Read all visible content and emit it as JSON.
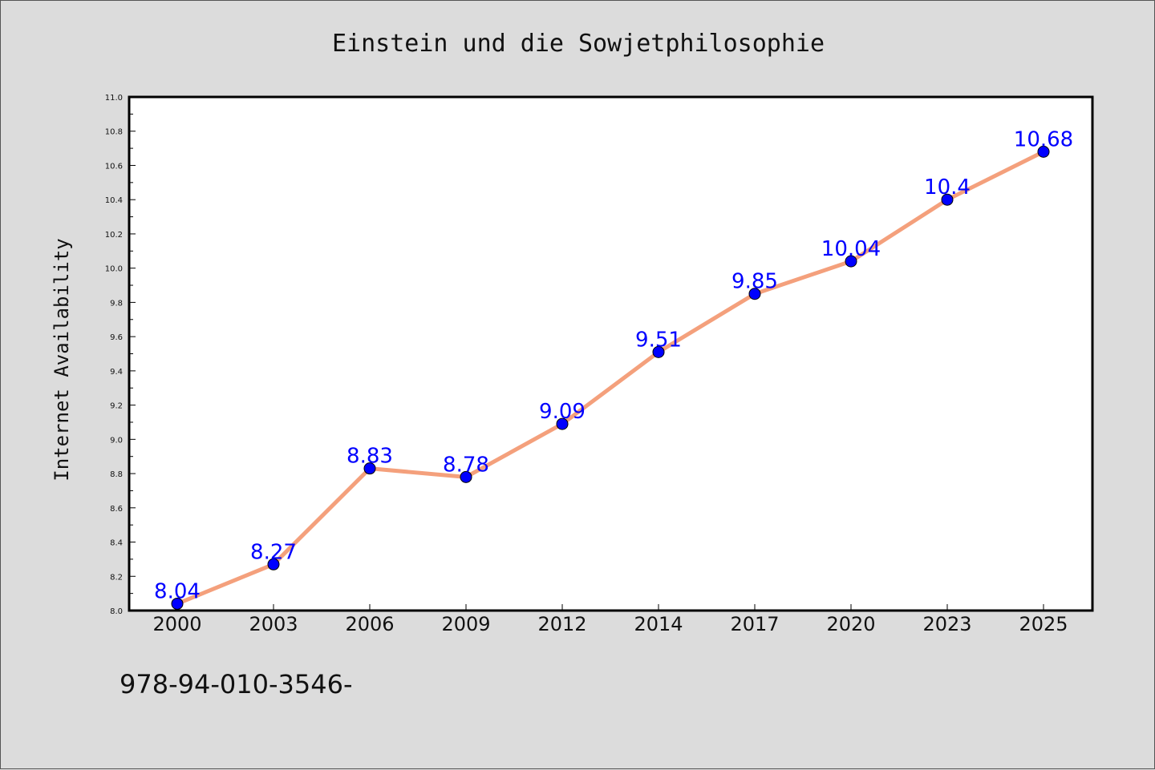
{
  "chart_data": {
    "type": "line",
    "title": "Einstein und die Sowjetphilosophie",
    "xlabel": "",
    "ylabel": "Internet Availability",
    "categories": [
      "2000",
      "2003",
      "2006",
      "2009",
      "2012",
      "2014",
      "2017",
      "2020",
      "2023",
      "2025"
    ],
    "series": [
      {
        "values": [
          8.04,
          8.27,
          8.83,
          8.78,
          9.09,
          9.51,
          9.85,
          10.04,
          10.4,
          10.68
        ],
        "labels": [
          "8.04",
          "8.27",
          "8.83",
          "8.78",
          "9.09",
          "9.51",
          "9.85",
          "10.04",
          "10.4",
          "10.68"
        ],
        "line_color": "#f4a07c",
        "marker_color": "#0000ff"
      }
    ],
    "ylim": [
      8.0,
      11.0
    ],
    "yticks": [
      "8.0",
      "8.2",
      "8.4",
      "8.6",
      "8.8",
      "9.0",
      "9.2",
      "9.4",
      "9.6",
      "9.8",
      "10.0",
      "10.2",
      "10.4",
      "10.6",
      "10.8",
      "11.0"
    ],
    "grid": false,
    "legend": "none"
  },
  "footer": {
    "text": "978-94-010-3546-"
  },
  "colors": {
    "background": "#dcdcdc",
    "plot_background": "#ffffff",
    "axis": "#000000",
    "label_color": "#0000ff"
  }
}
